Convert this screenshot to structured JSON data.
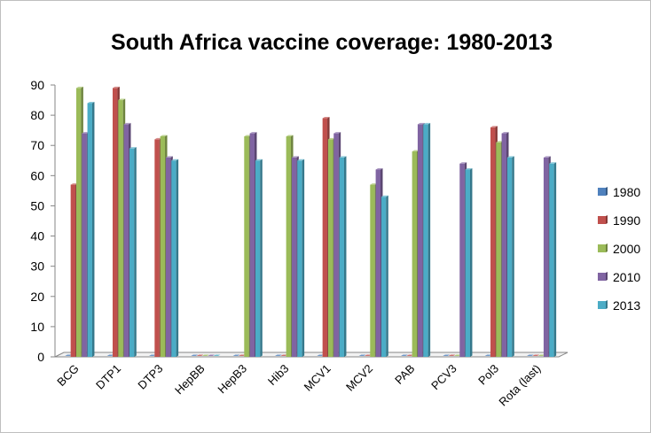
{
  "chart_data": {
    "type": "bar",
    "title": "South Africa vaccine coverage: 1980-2013",
    "xlabel": "",
    "ylabel": "",
    "ylim": [
      0,
      90
    ],
    "yticks": [
      0,
      10,
      20,
      30,
      40,
      50,
      60,
      70,
      80,
      90
    ],
    "grid": false,
    "legend_position": "right",
    "categories": [
      "BCG",
      "DTP1",
      "DTP3",
      "HepBB",
      "HepB3",
      "Hib3",
      "MCV1",
      "MCV2",
      "PAB",
      "PCV3",
      "Pol3",
      "Rota (last)"
    ],
    "series": [
      {
        "name": "1980",
        "color": "#4F81BD",
        "values": [
          0,
          0,
          0,
          0,
          0,
          0,
          0,
          0,
          0,
          0,
          0,
          0
        ]
      },
      {
        "name": "1990",
        "color": "#C0504D",
        "values": [
          57,
          89,
          72,
          0,
          0,
          0,
          79,
          0,
          0,
          0,
          76,
          0
        ]
      },
      {
        "name": "2000",
        "color": "#9BBB59",
        "values": [
          89,
          85,
          73,
          0,
          73,
          73,
          72,
          57,
          68,
          0,
          71,
          0
        ]
      },
      {
        "name": "2010",
        "color": "#8064A2",
        "values": [
          74,
          77,
          66,
          0,
          74,
          66,
          74,
          62,
          77,
          64,
          74,
          66
        ]
      },
      {
        "name": "2013",
        "color": "#4BACC6",
        "values": [
          84,
          69,
          65,
          0,
          65,
          65,
          66,
          53,
          77,
          62,
          66,
          64
        ]
      }
    ]
  }
}
